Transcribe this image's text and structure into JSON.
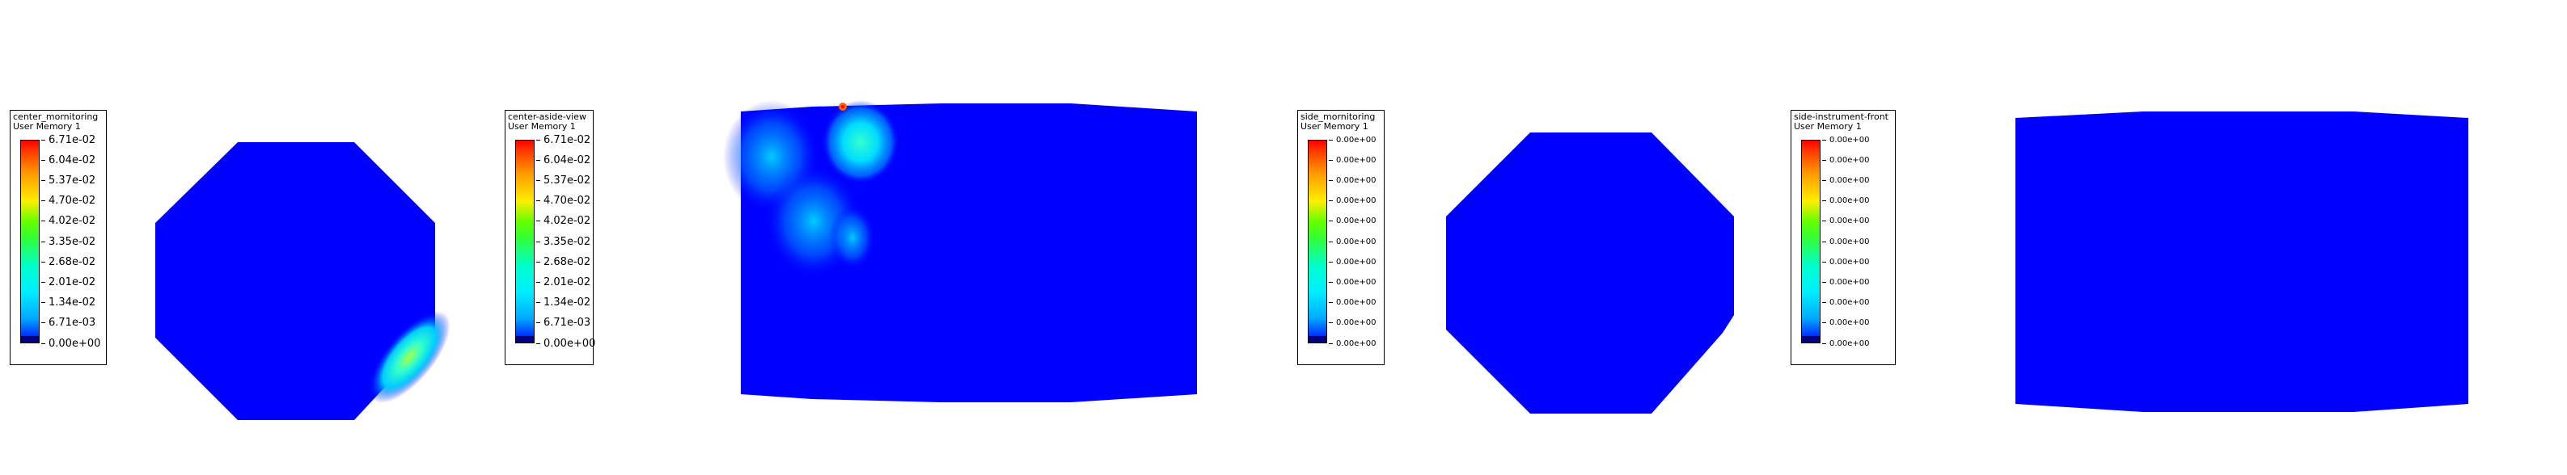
{
  "colors": {
    "field_blue": "#0000ff",
    "background": "#ffffff",
    "frame": "#000000"
  },
  "legends": [
    {
      "title": "center_mornitoring",
      "subtitle": "User Memory 1",
      "ticks": [
        "6.71e-02",
        "6.04e-02",
        "5.37e-02",
        "4.70e-02",
        "4.02e-02",
        "3.35e-02",
        "2.68e-02",
        "2.01e-02",
        "1.34e-02",
        "6.71e-03",
        "0.00e+00"
      ]
    },
    {
      "title": "center-aside-view",
      "subtitle": "User Memory 1",
      "ticks": [
        "6.71e-02",
        "6.04e-02",
        "5.37e-02",
        "4.70e-02",
        "4.02e-02",
        "3.35e-02",
        "2.68e-02",
        "2.01e-02",
        "1.34e-02",
        "6.71e-03",
        "0.00e+00"
      ]
    },
    {
      "title": "side_mornitoring",
      "subtitle": "User Memory 1",
      "ticks": [
        "0.00e+00",
        "0.00e+00",
        "0.00e+00",
        "0.00e+00",
        "0.00e+00",
        "0.00e+00",
        "0.00e+00",
        "0.00e+00",
        "0.00e+00",
        "0.00e+00",
        "0.00e+00"
      ]
    },
    {
      "title": "side-instrument-front",
      "subtitle": "User Memory 1",
      "ticks": [
        "0.00e+00",
        "0.00e+00",
        "0.00e+00",
        "0.00e+00",
        "0.00e+00",
        "0.00e+00",
        "0.00e+00",
        "0.00e+00",
        "0.00e+00",
        "0.00e+00",
        "0.00e+00"
      ]
    }
  ]
}
